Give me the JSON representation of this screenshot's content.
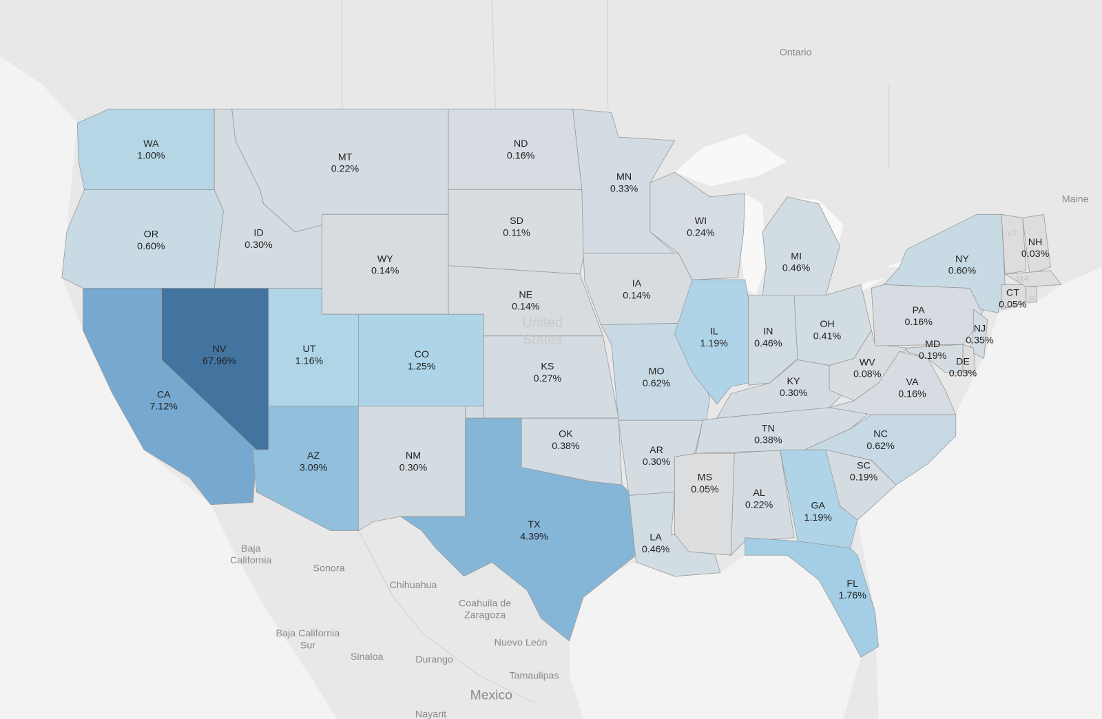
{
  "map": {
    "regions": [
      {
        "code": "WA",
        "value": 1.0,
        "label": "1.00%"
      },
      {
        "code": "OR",
        "value": 0.6,
        "label": "0.60%"
      },
      {
        "code": "CA",
        "value": 7.12,
        "label": "7.12%"
      },
      {
        "code": "NV",
        "value": 67.96,
        "label": "67.96%"
      },
      {
        "code": "ID",
        "value": 0.3,
        "label": "0.30%"
      },
      {
        "code": "MT",
        "value": 0.22,
        "label": "0.22%"
      },
      {
        "code": "WY",
        "value": 0.14,
        "label": "0.14%"
      },
      {
        "code": "UT",
        "value": 1.16,
        "label": "1.16%"
      },
      {
        "code": "CO",
        "value": 1.25,
        "label": "1.25%"
      },
      {
        "code": "AZ",
        "value": 3.09,
        "label": "3.09%"
      },
      {
        "code": "NM",
        "value": 0.3,
        "label": "0.30%"
      },
      {
        "code": "ND",
        "value": 0.16,
        "label": "0.16%"
      },
      {
        "code": "SD",
        "value": 0.11,
        "label": "0.11%"
      },
      {
        "code": "NE",
        "value": 0.14,
        "label": "0.14%"
      },
      {
        "code": "KS",
        "value": 0.27,
        "label": "0.27%"
      },
      {
        "code": "OK",
        "value": 0.38,
        "label": "0.38%"
      },
      {
        "code": "TX",
        "value": 4.39,
        "label": "4.39%"
      },
      {
        "code": "MN",
        "value": 0.33,
        "label": "0.33%"
      },
      {
        "code": "WI",
        "value": 0.24,
        "label": "0.24%"
      },
      {
        "code": "IA",
        "value": 0.14,
        "label": "0.14%"
      },
      {
        "code": "MO",
        "value": 0.62,
        "label": "0.62%"
      },
      {
        "code": "AR",
        "value": 0.3,
        "label": "0.30%"
      },
      {
        "code": "LA",
        "value": 0.46,
        "label": "0.46%"
      },
      {
        "code": "MS",
        "value": 0.05,
        "label": "0.05%"
      },
      {
        "code": "AL",
        "value": 0.22,
        "label": "0.22%"
      },
      {
        "code": "IL",
        "value": 1.19,
        "label": "1.19%"
      },
      {
        "code": "IN",
        "value": 0.46,
        "label": "0.46%"
      },
      {
        "code": "OH",
        "value": 0.41,
        "label": "0.41%"
      },
      {
        "code": "MI",
        "value": 0.46,
        "label": "0.46%"
      },
      {
        "code": "KY",
        "value": 0.3,
        "label": "0.30%"
      },
      {
        "code": "TN",
        "value": 0.38,
        "label": "0.38%"
      },
      {
        "code": "WV",
        "value": 0.08,
        "label": "0.08%"
      },
      {
        "code": "VA",
        "value": 0.16,
        "label": "0.16%"
      },
      {
        "code": "NC",
        "value": 0.62,
        "label": "0.62%"
      },
      {
        "code": "SC",
        "value": 0.19,
        "label": "0.19%"
      },
      {
        "code": "GA",
        "value": 1.19,
        "label": "1.19%"
      },
      {
        "code": "FL",
        "value": 1.76,
        "label": "1.76%"
      },
      {
        "code": "PA",
        "value": 0.16,
        "label": "0.16%"
      },
      {
        "code": "NY",
        "value": 0.6,
        "label": "0.60%"
      },
      {
        "code": "NJ",
        "value": 0.35,
        "label": "0.35%"
      },
      {
        "code": "DE",
        "value": 0.03,
        "label": "0.03%"
      },
      {
        "code": "MD",
        "value": 0.19,
        "label": "0.19%"
      },
      {
        "code": "CT",
        "value": 0.05,
        "label": "0.05%"
      },
      {
        "code": "NH",
        "value": 0.03,
        "label": "0.03%"
      }
    ],
    "unlabeled_regions": [
      "VT",
      "MA",
      "RI"
    ],
    "places": [
      {
        "lines": [
          "Ontario"
        ]
      },
      {
        "lines": [
          "Maine"
        ]
      },
      {
        "lines": [
          "United",
          "States"
        ]
      },
      {
        "lines": [
          "Baja",
          "California"
        ]
      },
      {
        "lines": [
          "Sonora"
        ]
      },
      {
        "lines": [
          "Chihuahua"
        ]
      },
      {
        "lines": [
          "Coahuila de",
          "Zaragoza"
        ]
      },
      {
        "lines": [
          "Baja California",
          "Sur"
        ]
      },
      {
        "lines": [
          "Nuevo León"
        ]
      },
      {
        "lines": [
          "Sinaloa"
        ]
      },
      {
        "lines": [
          "Durango"
        ]
      },
      {
        "lines": [
          "Tamaulipas"
        ]
      },
      {
        "lines": [
          "Mexico"
        ]
      },
      {
        "lines": [
          "Nayarit"
        ]
      }
    ]
  }
}
